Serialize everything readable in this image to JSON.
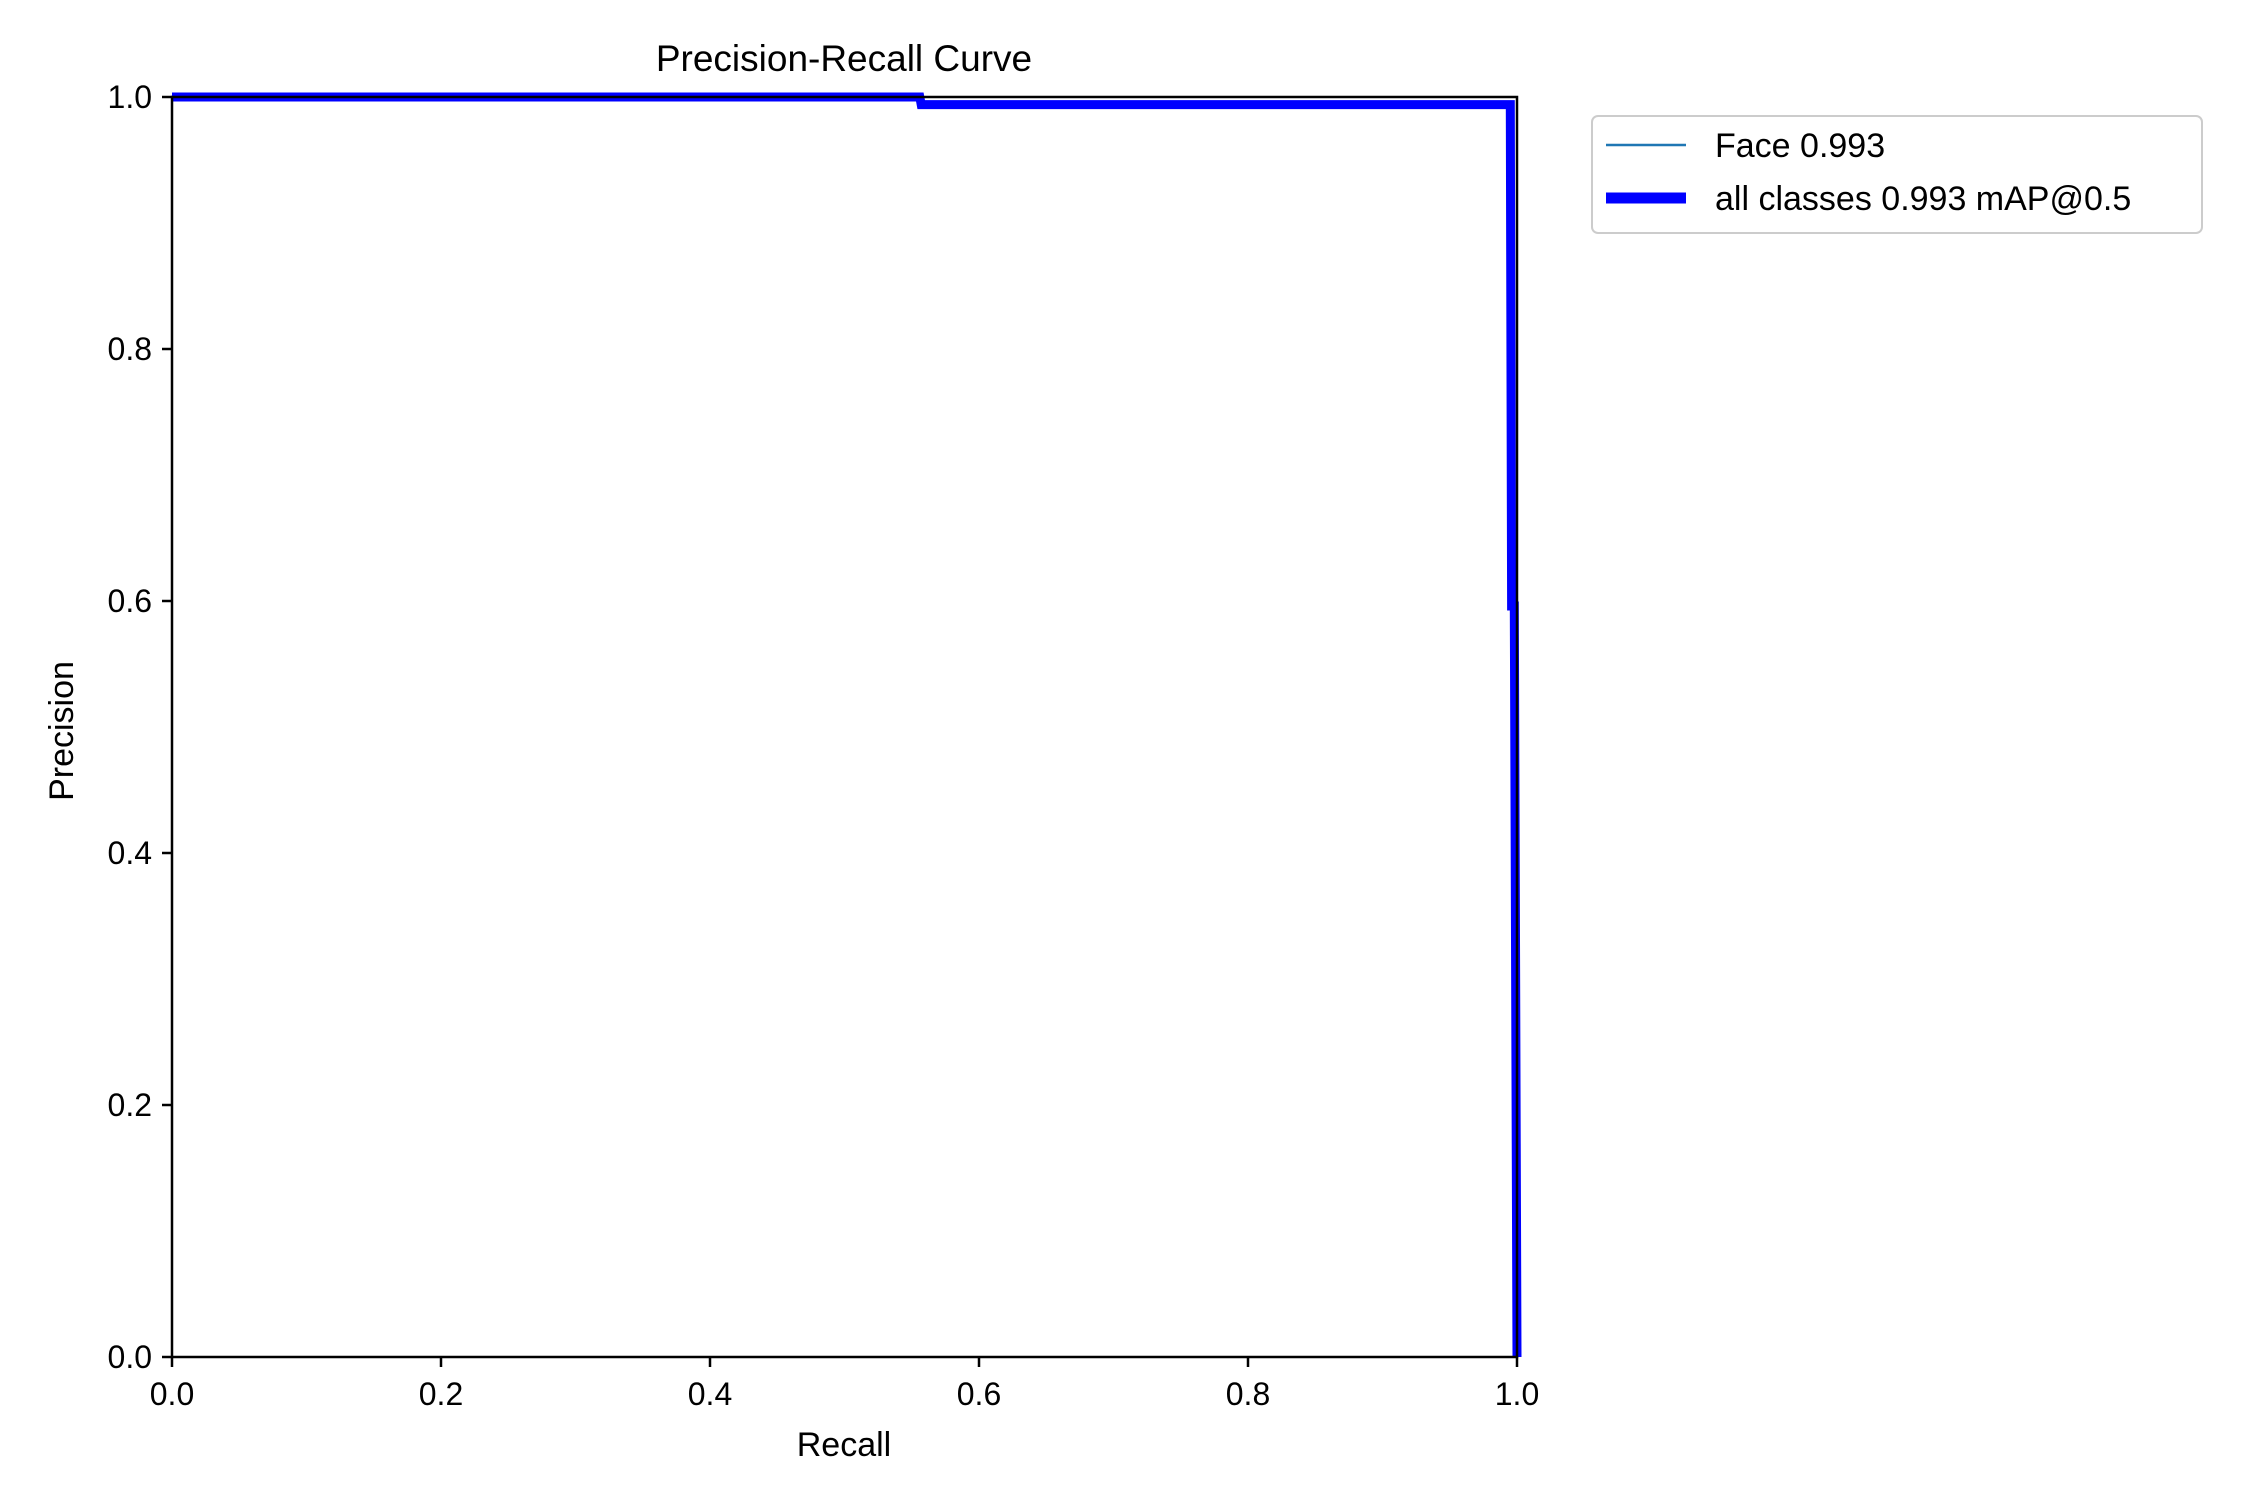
{
  "chart_data": {
    "type": "line",
    "title": "Precision-Recall Curve",
    "xlabel": "Recall",
    "ylabel": "Precision",
    "xlim": [
      0,
      1
    ],
    "ylim": [
      0,
      1
    ],
    "xticks": [
      "0.0",
      "0.2",
      "0.4",
      "0.6",
      "0.8",
      "1.0"
    ],
    "yticks": [
      "0.0",
      "0.2",
      "0.4",
      "0.6",
      "0.8",
      "1.0"
    ],
    "grid": false,
    "legend_position": "outside-top-right",
    "series": [
      {
        "name": "Face 0.993",
        "color": "#1f77b4",
        "line_width": "thin",
        "x": [
          0.0,
          0.556,
          0.557,
          0.995,
          0.996,
          0.998,
          1.0
        ],
        "y": [
          1.0,
          1.0,
          0.994,
          0.994,
          0.596,
          0.596,
          0.0
        ]
      },
      {
        "name": "all classes 0.993 mAP@0.5",
        "color": "#0000ff",
        "line_width": "thick",
        "x": [
          0.0,
          0.556,
          0.557,
          0.995,
          0.996,
          0.998,
          1.0
        ],
        "y": [
          1.0,
          1.0,
          0.994,
          0.994,
          0.596,
          0.596,
          0.0
        ]
      }
    ]
  }
}
